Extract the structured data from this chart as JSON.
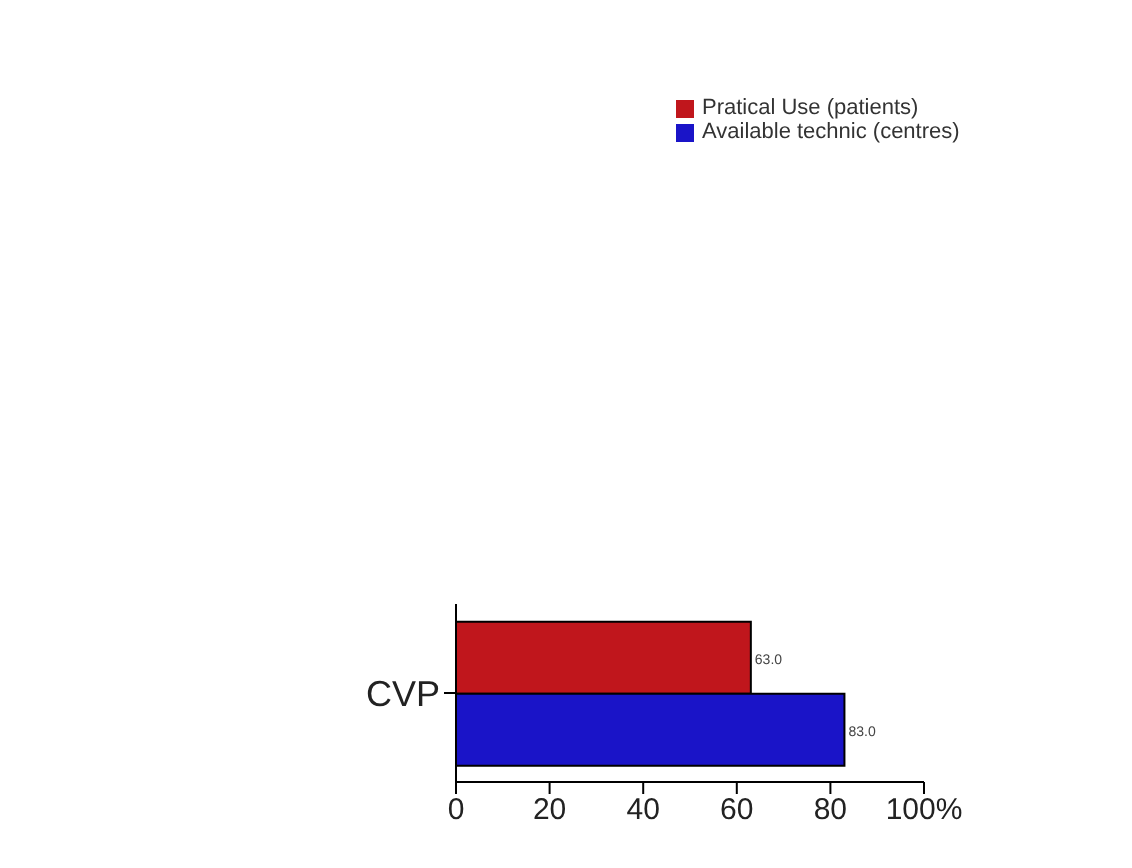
{
  "chart_data": {
    "type": "bar",
    "orientation": "horizontal",
    "categories": [
      "CVP"
    ],
    "series": [
      {
        "name": "Pratical Use (patients)",
        "color": "#c0161c",
        "values": [
          63.0
        ],
        "value_labels": [
          "63.0"
        ]
      },
      {
        "name": "Available technic (centres)",
        "color": "#1a14c8",
        "values": [
          83.0
        ],
        "value_labels": [
          "83.0"
        ]
      }
    ],
    "xlim": [
      0,
      100
    ],
    "xticks": [
      0,
      20,
      40,
      60,
      80,
      {
        "value": 100,
        "label": "100%"
      }
    ],
    "grid": false,
    "legend": "top right"
  }
}
